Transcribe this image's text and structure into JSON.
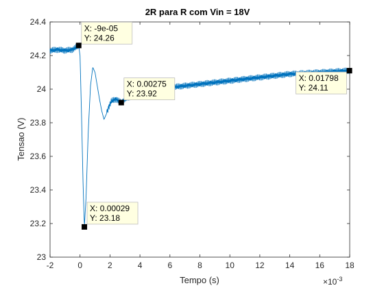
{
  "chart_data": {
    "type": "line",
    "title": "2R para R com Vin = 18V",
    "xlabel": "Tempo (s)",
    "ylabel": "Tensao (V)",
    "x_exponent_label": "×10",
    "x_exponent_power": "-3",
    "x_scale_factor": 0.001,
    "xlim": [
      -2,
      18
    ],
    "ylim": [
      23,
      24.4
    ],
    "x_ticks": [
      "-2",
      "0",
      "2",
      "4",
      "6",
      "8",
      "10",
      "12",
      "14",
      "16",
      "18"
    ],
    "y_ticks": [
      "23",
      "23.2",
      "23.4",
      "23.6",
      "23.8",
      "24",
      "24.2",
      "24.4"
    ],
    "grid": false,
    "line_color": "#0072BD",
    "series": [
      {
        "points": [
          [
            -2,
            24.23
          ],
          [
            -1.5,
            24.235
          ],
          [
            -1,
            24.23
          ],
          [
            -0.5,
            24.235
          ],
          [
            -0.09,
            24.26
          ],
          [
            0,
            24.2
          ],
          [
            0.1,
            23.85
          ],
          [
            0.2,
            23.45
          ],
          [
            0.29,
            23.18
          ],
          [
            0.4,
            23.35
          ],
          [
            0.55,
            23.75
          ],
          [
            0.7,
            24.02
          ],
          [
            0.85,
            24.13
          ],
          [
            1.0,
            24.1
          ],
          [
            1.15,
            24.02
          ],
          [
            1.3,
            23.94
          ],
          [
            1.45,
            23.87
          ],
          [
            1.6,
            23.82
          ],
          [
            1.75,
            23.85
          ],
          [
            1.9,
            23.89
          ],
          [
            2.1,
            23.93
          ],
          [
            2.4,
            23.94
          ],
          [
            2.75,
            23.92
          ],
          [
            3.0,
            23.94
          ],
          [
            3.5,
            23.96
          ],
          [
            4.0,
            23.97
          ],
          [
            5.0,
            23.99
          ],
          [
            6.0,
            24.01
          ],
          [
            8.0,
            24.03
          ],
          [
            10.0,
            24.05
          ],
          [
            12.0,
            24.07
          ],
          [
            14.0,
            24.09
          ],
          [
            16.0,
            24.1
          ],
          [
            17.98,
            24.11
          ],
          [
            18,
            24.11
          ]
        ]
      }
    ],
    "noise_amplitude": 0.018,
    "datatips": [
      {
        "x": -0.09,
        "y": 24.26,
        "x_label": "X: -9e-05",
        "y_label": "Y: 24.26",
        "box": "right"
      },
      {
        "x": 0.29,
        "y": 23.18,
        "x_label": "X: 0.00029",
        "y_label": "Y: 23.18",
        "box": "right-up"
      },
      {
        "x": 2.75,
        "y": 23.92,
        "x_label": "X: 0.00275",
        "y_label": "Y: 23.92",
        "box": "right-up"
      },
      {
        "x": 17.98,
        "y": 24.11,
        "x_label": "X: 0.01798",
        "y_label": "Y: 24.11",
        "box": "left-down"
      }
    ]
  }
}
